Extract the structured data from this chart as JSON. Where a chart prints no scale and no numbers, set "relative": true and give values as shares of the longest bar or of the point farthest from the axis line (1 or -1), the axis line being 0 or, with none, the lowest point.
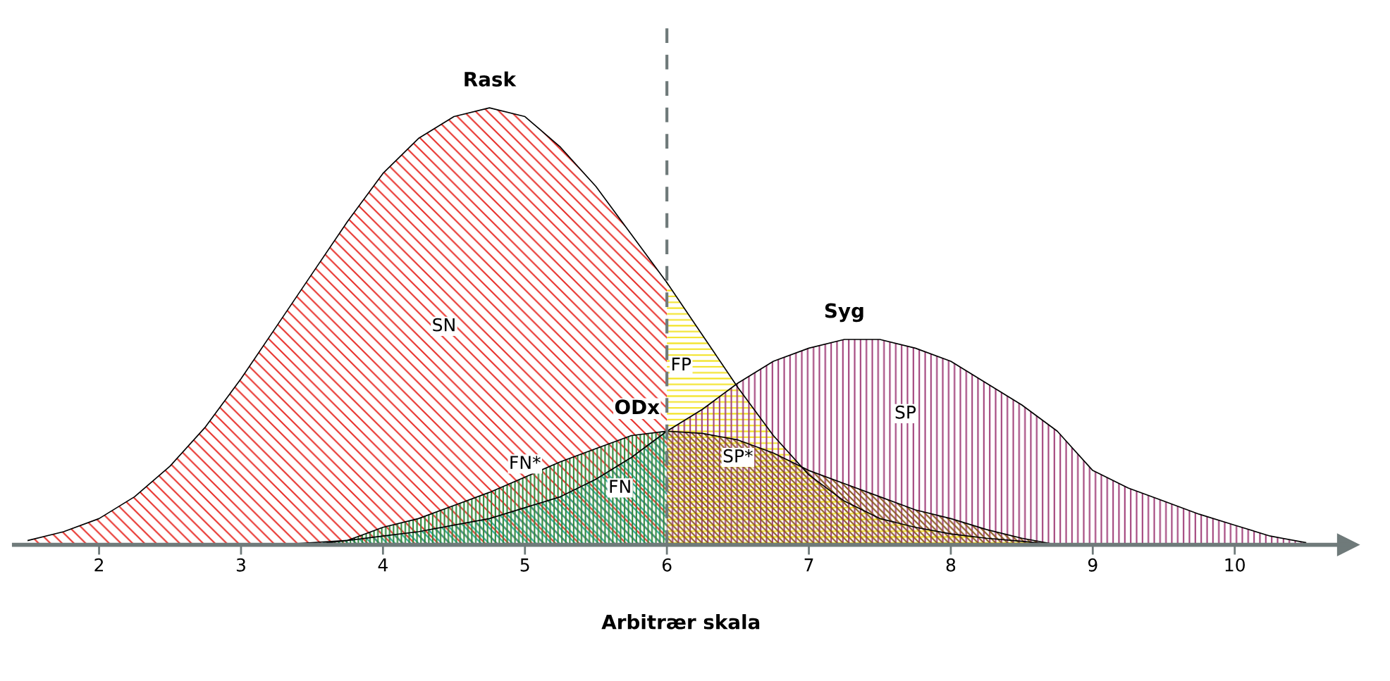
{
  "chart_data": {
    "type": "area",
    "relative": true,
    "xlabel": "Arbitrær skala",
    "xlim": [
      1.4,
      10.8
    ],
    "xticks": [
      2,
      3,
      4,
      5,
      6,
      7,
      8,
      9,
      10
    ],
    "grid": false,
    "legend": false,
    "tick_labels": "x",
    "series": [
      {
        "name": "Rask",
        "color": "#e8302a",
        "x": [
          1.5,
          1.75,
          2.0,
          2.25,
          2.5,
          2.75,
          3.0,
          3.25,
          3.5,
          3.75,
          4.0,
          4.25,
          4.5,
          4.75,
          5.0,
          5.25,
          5.5,
          5.75,
          6.0
        ],
        "values": [
          0.01,
          0.03,
          0.06,
          0.11,
          0.18,
          0.27,
          0.38,
          0.5,
          0.62,
          0.74,
          0.85,
          0.93,
          0.98,
          1.0,
          0.98,
          0.91,
          0.82,
          0.71,
          0.6
        ]
      },
      {
        "color": "#f2e21c",
        "x": [
          6.0,
          6.25,
          6.5,
          6.75,
          7.0,
          7.25,
          7.5,
          7.75,
          8.0,
          8.25,
          8.5,
          8.75
        ],
        "values": [
          0.6,
          0.48,
          0.36,
          0.25,
          0.16,
          0.1,
          0.06,
          0.04,
          0.025,
          0.015,
          0.008,
          0
        ]
      },
      {
        "name": "Syg",
        "color": "#a0407a",
        "x": [
          6.0,
          6.25,
          6.5,
          6.75,
          7.0,
          7.25,
          7.5,
          7.75,
          8.0,
          8.25,
          8.5,
          8.75,
          9.0,
          9.25,
          9.5,
          9.75,
          10.0,
          10.25,
          10.5
        ],
        "values": [
          0.26,
          0.31,
          0.37,
          0.42,
          0.45,
          0.47,
          0.47,
          0.45,
          0.42,
          0.37,
          0.32,
          0.26,
          0.17,
          0.13,
          0.1,
          0.07,
          0.045,
          0.02,
          0.005
        ]
      },
      {
        "color": "#2aa39a",
        "x": [
          3.25,
          3.5,
          3.75,
          4.0,
          4.25,
          4.5,
          4.75,
          5.0,
          5.25,
          5.5,
          5.75,
          6.0
        ],
        "values": [
          0,
          0.005,
          0.01,
          0.02,
          0.03,
          0.045,
          0.06,
          0.085,
          0.11,
          0.15,
          0.2,
          0.26
        ]
      },
      {
        "name": "ODx",
        "color": "#2e8a3c",
        "x": [
          3.5,
          3.75,
          4.0,
          4.25,
          4.5,
          4.75,
          5.0,
          5.25,
          5.5,
          5.75,
          6.0
        ],
        "values": [
          0,
          0.01,
          0.04,
          0.06,
          0.09,
          0.12,
          0.155,
          0.19,
          0.22,
          0.25,
          0.26
        ]
      },
      {
        "color": "#8a5a1e",
        "x": [
          6.0,
          6.25,
          6.5,
          6.75,
          7.0,
          7.25,
          7.5,
          7.75,
          8.0,
          8.25,
          8.5,
          8.75
        ],
        "values": [
          0.26,
          0.255,
          0.24,
          0.21,
          0.17,
          0.14,
          0.11,
          0.08,
          0.06,
          0.035,
          0.015,
          0
        ]
      }
    ],
    "ref_lines": [
      {
        "axis": "x",
        "value": 6,
        "color": "#6f7a7a",
        "line_style": "dashed"
      }
    ],
    "annotations": [
      "SN",
      "FP",
      "FN*",
      "FN",
      "SP*",
      "SP"
    ]
  }
}
